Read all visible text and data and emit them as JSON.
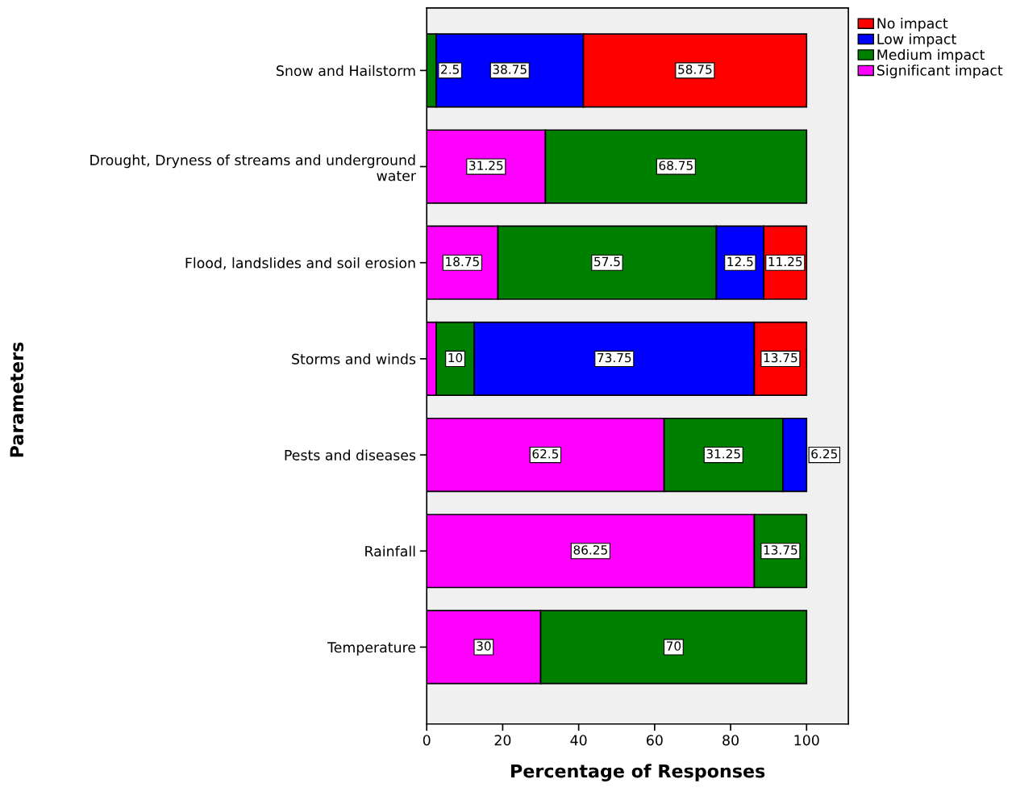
{
  "chart_data": {
    "type": "bar",
    "orientation": "horizontal",
    "stacked": true,
    "xlabel": "Percentage of Responses",
    "ylabel": "Parameters",
    "categories": [
      "Snow and Hailstorm",
      "Drought, Dryness of streams and underground\nwater",
      "Flood, landslides and soil erosion",
      "Storms and winds",
      "Pests and diseases",
      "Rainfall",
      "Temperature"
    ],
    "series": [
      {
        "name": "Significant impact",
        "color": "#ff00ff",
        "values": [
          null,
          31.25,
          18.75,
          2.5,
          62.5,
          86.25,
          30
        ],
        "value_labels": [
          null,
          "31.25",
          "18.75",
          null,
          "62.5",
          "86.25",
          "30"
        ]
      },
      {
        "name": "Medium impact",
        "color": "#008000",
        "values": [
          2.5,
          68.75,
          57.5,
          10,
          31.25,
          13.75,
          70
        ],
        "value_labels": [
          "2.5",
          "68.75",
          "57.5",
          "10",
          "31.25",
          "13.75",
          "70"
        ]
      },
      {
        "name": "Low impact",
        "color": "#0000ff",
        "values": [
          38.75,
          null,
          12.5,
          73.75,
          6.25,
          null,
          null
        ],
        "value_labels": [
          "38.75",
          null,
          "12.5",
          "73.75",
          "6.25",
          null,
          null
        ]
      },
      {
        "name": "No impact",
        "color": "#ff0000",
        "values": [
          58.75,
          null,
          11.25,
          13.75,
          null,
          null,
          null
        ],
        "value_labels": [
          "58.75",
          null,
          "11.25",
          "13.75",
          null,
          null,
          null
        ]
      }
    ],
    "xlim": [
      0,
      111
    ],
    "xticks": [
      0,
      20,
      40,
      60,
      80,
      100
    ],
    "grid": false,
    "legend": "top right"
  }
}
